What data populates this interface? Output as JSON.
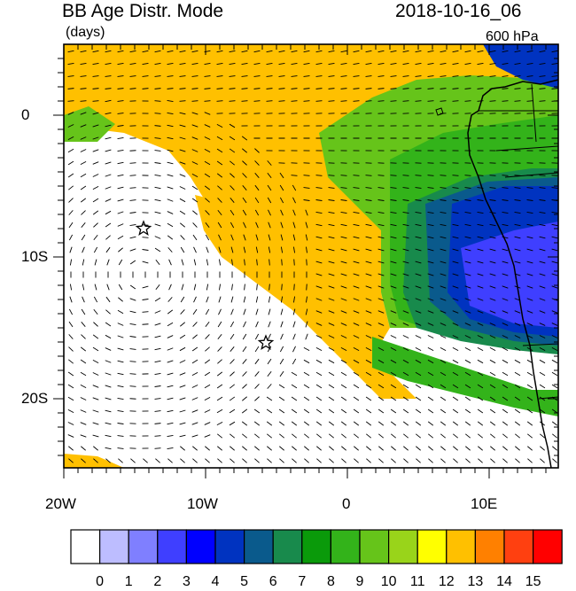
{
  "title_left": "BB Age Distr. Mode",
  "title_right": "2018-10-16_06",
  "units": "(days)",
  "level": "600 hPa",
  "y_tick_labels": [
    "0",
    "10S",
    "20S"
  ],
  "x_tick_labels": [
    "20W",
    "10W",
    "0",
    "10E"
  ],
  "colorbar": {
    "labels": [
      "0",
      "1",
      "2",
      "3",
      "4",
      "5",
      "6",
      "7",
      "8",
      "9",
      "10",
      "11",
      "12",
      "13",
      "14",
      "15"
    ],
    "colors": [
      "#ffffff",
      "#bdbdff",
      "#7f7fff",
      "#3f3fff",
      "#0000ff",
      "#0033c0",
      "#0a5a8c",
      "#188a4c",
      "#0a9a0a",
      "#33b31a",
      "#66c41a",
      "#99d41a",
      "#ffff00",
      "#ffc000",
      "#ff8000",
      "#ff4010",
      "#ff0000"
    ]
  },
  "map_colors": {
    "orange": "#ffc000",
    "green_light": "#66c41a",
    "green": "#33b31a",
    "green_dark": "#188a4c",
    "teal": "#0a5a8c",
    "blue": "#0033c0",
    "blue_light": "#3f3fff",
    "white": "#ffffff"
  },
  "markers": [
    "star-marker-1",
    "star-marker-2"
  ]
}
